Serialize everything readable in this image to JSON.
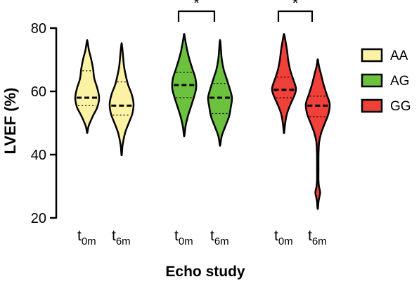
{
  "chart_data": {
    "type": "violin",
    "ylabel": "LVEF (%)",
    "xlabel": "Echo study",
    "ylim": [
      20,
      80
    ],
    "yticks": [
      20,
      40,
      60,
      80
    ],
    "groups": [
      "AA",
      "AG",
      "GG"
    ],
    "colors": {
      "AA": "#fbf3a3",
      "AG": "#6cc13e",
      "GG": "#f0403a"
    },
    "timepoints": [
      {
        "main": "t",
        "sub": "0m"
      },
      {
        "main": "t",
        "sub": "6m"
      }
    ],
    "violins": [
      {
        "group": "AA",
        "time": "t0m",
        "min": 47,
        "max": 76,
        "q1": 55.5,
        "median": 58,
        "q3": 66.5,
        "profile": [
          [
            47,
            0.02
          ],
          [
            49,
            0.12
          ],
          [
            52,
            0.45
          ],
          [
            55,
            0.85
          ],
          [
            58,
            1.0
          ],
          [
            61,
            0.85
          ],
          [
            64,
            0.6
          ],
          [
            67,
            0.5
          ],
          [
            70,
            0.35
          ],
          [
            73,
            0.15
          ],
          [
            76,
            0.02
          ]
        ]
      },
      {
        "group": "AA",
        "time": "t6m",
        "min": 40,
        "max": 75,
        "q1": 52.5,
        "median": 55.5,
        "q3": 63,
        "profile": [
          [
            40,
            0.02
          ],
          [
            43,
            0.08
          ],
          [
            47,
            0.3
          ],
          [
            50,
            0.6
          ],
          [
            53,
            0.9
          ],
          [
            56,
            1.0
          ],
          [
            59,
            0.85
          ],
          [
            62,
            0.55
          ],
          [
            65,
            0.35
          ],
          [
            68,
            0.2
          ],
          [
            72,
            0.1
          ],
          [
            75,
            0.02
          ]
        ]
      },
      {
        "group": "AG",
        "time": "t0m",
        "min": 46,
        "max": 78,
        "q1": 58,
        "median": 62,
        "q3": 66,
        "profile": [
          [
            46,
            0.02
          ],
          [
            49,
            0.12
          ],
          [
            52,
            0.3
          ],
          [
            55,
            0.55
          ],
          [
            58,
            0.8
          ],
          [
            61,
            1.0
          ],
          [
            64,
            0.95
          ],
          [
            67,
            0.7
          ],
          [
            70,
            0.45
          ],
          [
            73,
            0.25
          ],
          [
            76,
            0.1
          ],
          [
            78,
            0.02
          ]
        ]
      },
      {
        "group": "AG",
        "time": "t6m",
        "min": 43,
        "max": 76,
        "q1": 53,
        "median": 58,
        "q3": 62.5,
        "profile": [
          [
            43,
            0.02
          ],
          [
            46,
            0.15
          ],
          [
            49,
            0.45
          ],
          [
            52,
            0.75
          ],
          [
            55,
            0.9
          ],
          [
            58,
            1.0
          ],
          [
            61,
            0.8
          ],
          [
            64,
            0.55
          ],
          [
            67,
            0.3
          ],
          [
            70,
            0.15
          ],
          [
            73,
            0.08
          ],
          [
            76,
            0.02
          ]
        ]
      },
      {
        "group": "GG",
        "time": "t0m",
        "min": 47,
        "max": 78,
        "q1": 58,
        "median": 60.5,
        "q3": 64.5,
        "profile": [
          [
            47,
            0.02
          ],
          [
            50,
            0.1
          ],
          [
            53,
            0.25
          ],
          [
            56,
            0.55
          ],
          [
            59,
            0.9
          ],
          [
            61,
            1.0
          ],
          [
            64,
            0.75
          ],
          [
            67,
            0.5
          ],
          [
            70,
            0.35
          ],
          [
            73,
            0.25
          ],
          [
            76,
            0.12
          ],
          [
            78,
            0.02
          ]
        ]
      },
      {
        "group": "GG",
        "time": "t6m",
        "min": 23,
        "max": 70,
        "q1": 52,
        "median": 55.5,
        "q3": 58.5,
        "profile": [
          [
            23,
            0.02
          ],
          [
            25,
            0.06
          ],
          [
            26,
            0.1
          ],
          [
            27,
            0.16
          ],
          [
            28,
            0.2
          ],
          [
            29,
            0.16
          ],
          [
            30,
            0.1
          ],
          [
            32,
            0.06
          ],
          [
            35,
            0.06
          ],
          [
            38,
            0.06
          ],
          [
            41,
            0.07
          ],
          [
            44,
            0.12
          ],
          [
            47,
            0.3
          ],
          [
            50,
            0.6
          ],
          [
            53,
            0.9
          ],
          [
            56,
            1.0
          ],
          [
            59,
            0.75
          ],
          [
            62,
            0.5
          ],
          [
            65,
            0.3
          ],
          [
            68,
            0.1
          ],
          [
            70,
            0.02
          ]
        ]
      }
    ],
    "significance": [
      {
        "group": "AG",
        "label": "*"
      },
      {
        "group": "GG",
        "label": "*"
      }
    ],
    "legend": {
      "position": "right",
      "entries": [
        "AA",
        "AG",
        "GG"
      ]
    }
  }
}
